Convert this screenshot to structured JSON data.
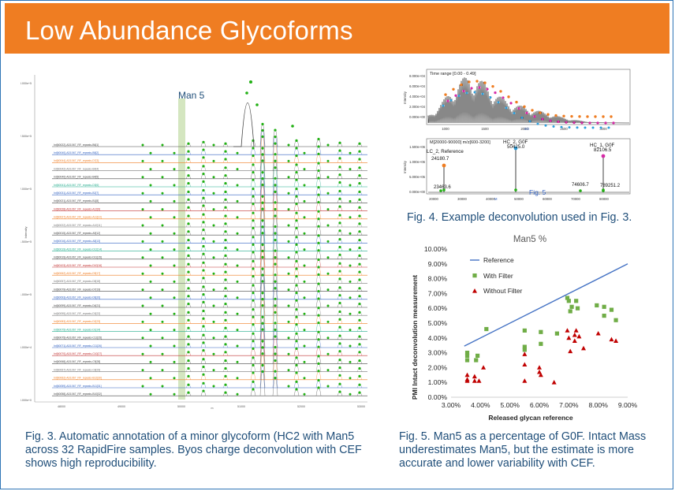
{
  "title": "Low Abundance Glycoforms",
  "colors": {
    "banner": "#ef7d22",
    "caption": "#1f4e79",
    "frame": "#2e75b6",
    "peak_marker": "#22b014",
    "reference_line": "#4472c4",
    "with_filter": "#70ad47",
    "without_filter": "#c00000"
  },
  "fig3": {
    "annotation": "Man 5",
    "caption": "Fig. 3. Automatic annotation of a minor glycoform (HC2 with Man5 across 32 RapidFire samples. Byos charge deconvolution with CEF shows high reproducibility.",
    "y_axis_label": "Intensity",
    "x_axis_label": "m",
    "y_ticks": [
      "3.000e+5",
      "2.500e+5",
      "2.000e+5",
      "1.500e+5",
      "1.000e+5",
      "5.000e+4",
      "0.000e+0"
    ],
    "x_ticks": [
      "48000",
      "49000",
      "50000",
      "51000",
      "52000",
      "53000"
    ],
    "traces": [
      "Int[60022]-AD1067_RF_repeats-B6[1]",
      "Int[60040]-AD1067_RF_repeats-B8[2]",
      "Int[60044]-AD1067_RF_repeats-D7[3]",
      "Int[60042]-AD1067_RF_repeats-B4[4]",
      "Int[60040]-AD1067_RF_repeats-B4[5]",
      "Int[60041]-AD1067_RF_repeats-D3[6]",
      "Int[60031]-AD1067_RF_repeats-B2[7]",
      "Int[60021]-AD1067_RF_repeats-B1[8]",
      "Int[60028]-AD1067_RF_repeats-A12[9]",
      "Int[60027]-AD1067_RF_repeats-A11[10]",
      "Int[60022]-AD1067_RF_repeats-A10[11]",
      "Int[60015]-AD1067_RF_repeats-A9[12]",
      "Int[60016]-AD1067_RF_repeats-A8[13]",
      "Int[60019]-AD1067_RF_repeats-D12[14]",
      "Int[60019]-AD1067_RF_repeats-D11[15]",
      "Int[60103]-AD1067_RF_repeats-D10[16]",
      "Int[60062]-AD1067_RF_repeats-D9[17]",
      "Int[60057]-AD1067_RF_repeats-D8[18]",
      "Int[60079]-AD1067_RF_repeats-D7[19]",
      "Int[60093]-AD1067_RF_repeats-D6[20]",
      "Int[60099]-AD1067_RF_repeats-D4[21]",
      "Int[60095]-AD1067_RF_repeats-D3[22]",
      "Int[60083]-AD1067_RF_repeats-D2[23]",
      "Int[60075]-AD1067_RF_repeats-D1[24]",
      "Int[60075]-AD1067_RF_repeats-C12[25]",
      "Int[60071]-AD1067_RF_repeats-C11[26]",
      "Int[60070]-AD1067_RF_repeats-C10[27]",
      "Int[60068]-AD1067_RF_repeats-C9[28]",
      "Int[60067]-AD1067_RF_repeats-C8[29]",
      "Int[60062]-AD1067_RF_repeats-B12[30]",
      "Int[60059]-AD1067_RF_repeats-B11[31]",
      "Int[60058]-AD1067_RF_repeats-B10[32]"
    ]
  },
  "fig4": {
    "caption": "Fig. 4. Example deconvolution used in Fig. 3.",
    "top": {
      "title": "Time range [0.00 - 0.49]",
      "y_label": "Intensity",
      "x_label": "m/z",
      "x_ticks": [
        "1000",
        "1500",
        "2000",
        "2500",
        "3000"
      ],
      "y_ticks": [
        "8.000e+04",
        "6.000e+04",
        "4.000e+04",
        "2.000e+04",
        "0.000e+00"
      ]
    },
    "bottom": {
      "title": "M[20000-90000] m/z[600-3200]",
      "y_label": "Intensity",
      "x_label": "M",
      "x_ticks": [
        "20000",
        "30000",
        "40000",
        "50000",
        "60000",
        "70000",
        "80000"
      ],
      "y_ticks": [
        "1.500e+06",
        "1.000e+06",
        "5.000e+05",
        "0.000e+00"
      ],
      "peaks": [
        {
          "label": "LC_2, Reference",
          "mass": "24180.7",
          "color": "#ef7d22"
        },
        {
          "label": "HC_2, G0F",
          "mass": "50425.0",
          "color": "#2e9fdc"
        },
        {
          "label": "HC_1, G0F",
          "mass": "82106.5",
          "color": "#d62aa6"
        },
        {
          "label": "",
          "mass": "23463.6",
          "color": "#22b014"
        },
        {
          "label": "",
          "mass": "74606.7",
          "color": "#22b014"
        },
        {
          "label": "",
          "mass": "789251.2",
          "color": "#22b014"
        }
      ],
      "annotation": "Fig. 5"
    }
  },
  "fig5": {
    "caption": "Fig. 5. Man5 as a percentage of G0F. Intact Mass underestimates Man5, but the estimate is more accurate and lower variability with CEF."
  },
  "chart_data": {
    "type": "scatter",
    "title": "Man5 %",
    "xlabel": "Released glycan reference",
    "ylabel": "PMI Intact deconvolution measurement",
    "xlim": [
      0.03,
      0.09
    ],
    "ylim": [
      0.0,
      0.1
    ],
    "x_ticks": [
      "3.00%",
      "4.00%",
      "5.00%",
      "6.00%",
      "7.00%",
      "8.00%",
      "9.00%"
    ],
    "y_ticks": [
      "0.00%",
      "1.00%",
      "2.00%",
      "3.00%",
      "4.00%",
      "5.00%",
      "6.00%",
      "7.00%",
      "8.00%",
      "9.00%",
      "10.00%"
    ],
    "legend_position": "top-left",
    "series": [
      {
        "name": "Reference",
        "kind": "line",
        "points": [
          [
            0.0345,
            0.0345
          ],
          [
            0.09,
            0.09
          ]
        ]
      },
      {
        "name": "With Filter",
        "kind": "square",
        "points": [
          [
            0.0355,
            0.03
          ],
          [
            0.0355,
            0.028
          ],
          [
            0.0355,
            0.025
          ],
          [
            0.0385,
            0.025
          ],
          [
            0.039,
            0.028
          ],
          [
            0.042,
            0.046
          ],
          [
            0.055,
            0.045
          ],
          [
            0.055,
            0.034
          ],
          [
            0.055,
            0.032
          ],
          [
            0.0605,
            0.044
          ],
          [
            0.0605,
            0.036
          ],
          [
            0.066,
            0.043
          ],
          [
            0.0695,
            0.067
          ],
          [
            0.07,
            0.065
          ],
          [
            0.0705,
            0.058
          ],
          [
            0.071,
            0.061
          ],
          [
            0.0725,
            0.065
          ],
          [
            0.073,
            0.06
          ],
          [
            0.0795,
            0.062
          ],
          [
            0.082,
            0.061
          ],
          [
            0.082,
            0.055
          ],
          [
            0.0845,
            0.059
          ],
          [
            0.086,
            0.052
          ]
        ]
      },
      {
        "name": "Without Filter",
        "kind": "triangle",
        "points": [
          [
            0.0355,
            0.015
          ],
          [
            0.0355,
            0.012
          ],
          [
            0.0355,
            0.011
          ],
          [
            0.038,
            0.014
          ],
          [
            0.038,
            0.011
          ],
          [
            0.0395,
            0.011
          ],
          [
            0.041,
            0.02
          ],
          [
            0.055,
            0.029
          ],
          [
            0.055,
            0.022
          ],
          [
            0.055,
            0.011
          ],
          [
            0.06,
            0.02
          ],
          [
            0.06,
            0.017
          ],
          [
            0.0605,
            0.015
          ],
          [
            0.065,
            0.01
          ],
          [
            0.0695,
            0.045
          ],
          [
            0.07,
            0.04
          ],
          [
            0.0705,
            0.031
          ],
          [
            0.072,
            0.042
          ],
          [
            0.072,
            0.038
          ],
          [
            0.0725,
            0.045
          ],
          [
            0.0735,
            0.041
          ],
          [
            0.075,
            0.033
          ],
          [
            0.08,
            0.043
          ],
          [
            0.0845,
            0.039
          ],
          [
            0.086,
            0.038
          ]
        ]
      }
    ]
  }
}
